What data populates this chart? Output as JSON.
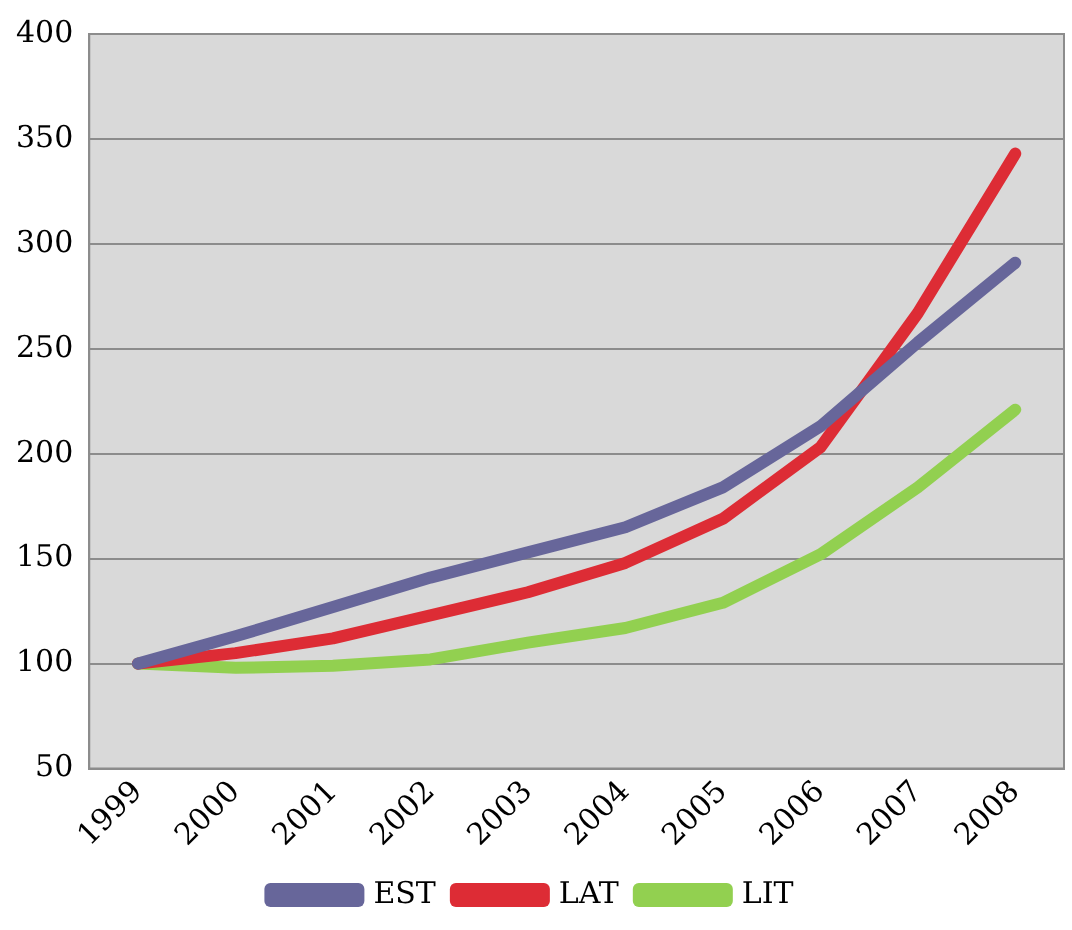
{
  "chart_data": {
    "type": "line",
    "categories": [
      "1999",
      "2000",
      "2001",
      "2002",
      "2003",
      "2004",
      "2005",
      "2006",
      "2007",
      "2008"
    ],
    "series": [
      {
        "name": "EST",
        "color": "#67669a",
        "values": [
          100,
          113,
          127,
          141,
          153,
          165,
          184,
          213,
          253,
          291
        ]
      },
      {
        "name": "LAT",
        "color": "#dd2c35",
        "values": [
          100,
          105,
          112,
          123,
          134,
          148,
          169,
          203,
          267,
          343
        ]
      },
      {
        "name": "LIT",
        "color": "#92d050",
        "values": [
          100,
          98,
          99,
          102,
          110,
          117,
          129,
          152,
          184,
          221
        ]
      }
    ],
    "ylim": [
      50,
      400
    ],
    "yticks": [
      50,
      100,
      150,
      200,
      250,
      300,
      350,
      400
    ],
    "grid": "y",
    "legend": "bottom",
    "marker": "none",
    "line_style": "solid"
  }
}
